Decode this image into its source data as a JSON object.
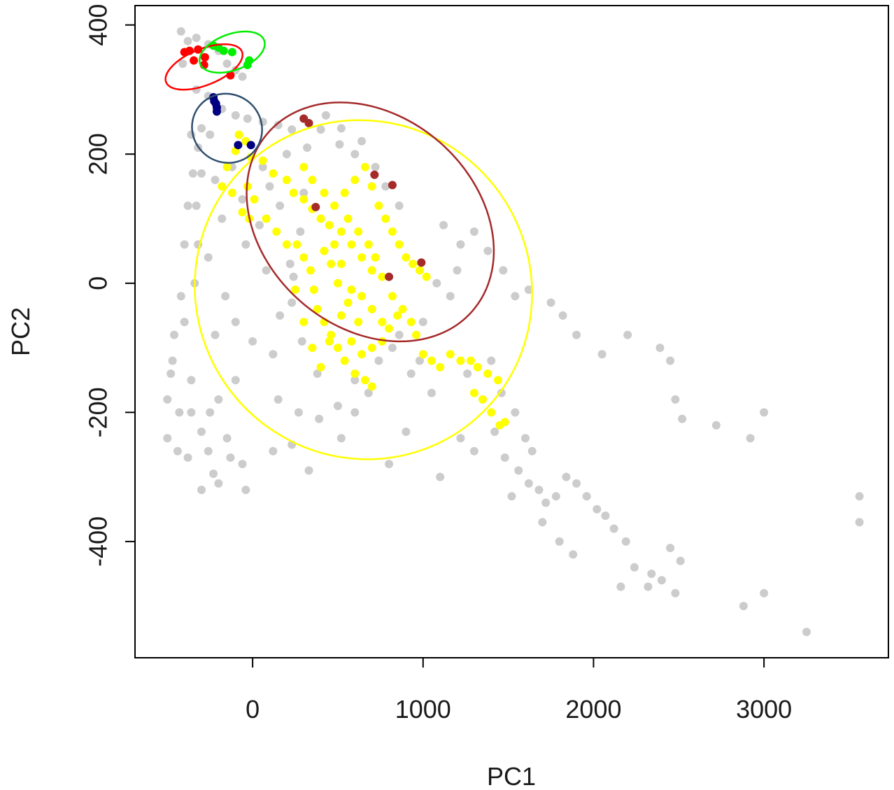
{
  "chart_data": {
    "type": "scatter",
    "title": "",
    "xlabel": "PC1",
    "ylabel": "PC2",
    "xlim": [
      -690,
      3730
    ],
    "ylim": [
      -580,
      430
    ],
    "x_ticks": [
      0,
      1000,
      2000,
      3000
    ],
    "y_ticks": [
      -400,
      -200,
      0,
      200,
      400
    ],
    "x_tick_labels": [
      "0",
      "1000",
      "2000",
      "3000"
    ],
    "y_tick_labels": [
      "-400",
      "-200",
      "0",
      "200",
      "400"
    ],
    "grid": false,
    "legend": "none",
    "colors": {
      "background_points": "#cccccc",
      "yellow": "#ffff00",
      "brown": "#a52a2a",
      "red": "#ff0000",
      "green": "#00ee00",
      "navy": "#000080",
      "slate": "#2f4f6f"
    },
    "background_points": [
      [
        -420,
        390
      ],
      [
        -380,
        375
      ],
      [
        -330,
        380
      ],
      [
        -260,
        370
      ],
      [
        -200,
        360
      ],
      [
        -150,
        340
      ],
      [
        -100,
        330
      ],
      [
        -60,
        320
      ],
      [
        -410,
        340
      ],
      [
        -330,
        300
      ],
      [
        -260,
        290
      ],
      [
        -180,
        270
      ],
      [
        -100,
        260
      ],
      [
        -30,
        255
      ],
      [
        60,
        250
      ],
      [
        150,
        245
      ],
      [
        230,
        238
      ],
      [
        400,
        238
      ],
      [
        510,
        215
      ],
      [
        600,
        200
      ],
      [
        -360,
        230
      ],
      [
        -320,
        210
      ],
      [
        -300,
        170
      ],
      [
        -330,
        120
      ],
      [
        -320,
        60
      ],
      [
        -340,
        0
      ],
      [
        -400,
        -60
      ],
      [
        -470,
        -120
      ],
      [
        -500,
        -180
      ],
      [
        -500,
        -240
      ],
      [
        -440,
        -260
      ],
      [
        -380,
        -270
      ],
      [
        -300,
        -230
      ],
      [
        -200,
        -180
      ],
      [
        -100,
        -150
      ],
      [
        -250,
        -200
      ],
      [
        -360,
        -150
      ],
      [
        -220,
        -80
      ],
      [
        -160,
        -20
      ],
      [
        -260,
        40
      ],
      [
        -180,
        100
      ],
      [
        -220,
        160
      ],
      [
        -120,
        180
      ],
      [
        -60,
        130
      ],
      [
        40,
        90
      ],
      [
        -40,
        60
      ],
      [
        80,
        20
      ],
      [
        -100,
        -60
      ],
      [
        0,
        -90
      ],
      [
        120,
        -110
      ],
      [
        160,
        -50
      ],
      [
        230,
        -30
      ],
      [
        220,
        30
      ],
      [
        280,
        80
      ],
      [
        300,
        140
      ],
      [
        100,
        150
      ],
      [
        200,
        200
      ],
      [
        320,
        210
      ],
      [
        -300,
        -320
      ],
      [
        -200,
        -310
      ],
      [
        -130,
        -270
      ],
      [
        -60,
        -280
      ],
      [
        -40,
        -320
      ],
      [
        150,
        -180
      ],
      [
        270,
        -200
      ],
      [
        390,
        -210
      ],
      [
        500,
        -190
      ],
      [
        600,
        -200
      ],
      [
        520,
        -240
      ],
      [
        740,
        -120
      ],
      [
        860,
        -80
      ],
      [
        930,
        -140
      ],
      [
        1000,
        -60
      ],
      [
        1080,
        0
      ],
      [
        1120,
        90
      ],
      [
        1220,
        60
      ],
      [
        1300,
        80
      ],
      [
        1380,
        50
      ],
      [
        1470,
        20
      ],
      [
        1540,
        -20
      ],
      [
        1620,
        -10
      ],
      [
        1750,
        -30
      ],
      [
        1820,
        -50
      ],
      [
        1900,
        -80
      ],
      [
        1350,
        -180
      ],
      [
        1420,
        -230
      ],
      [
        1480,
        -270
      ],
      [
        1560,
        -290
      ],
      [
        1620,
        -310
      ],
      [
        1680,
        -320
      ],
      [
        1720,
        -340
      ],
      [
        1780,
        -330
      ],
      [
        1840,
        -300
      ],
      [
        1900,
        -310
      ],
      [
        1960,
        -330
      ],
      [
        2020,
        -350
      ],
      [
        2070,
        -360
      ],
      [
        1700,
        -370
      ],
      [
        1800,
        -400
      ],
      [
        1880,
        -420
      ],
      [
        2120,
        -380
      ],
      [
        2190,
        -400
      ],
      [
        2240,
        -440
      ],
      [
        2320,
        -470
      ],
      [
        2400,
        -460
      ],
      [
        2480,
        -480
      ],
      [
        1520,
        -330
      ],
      [
        1640,
        -260
      ],
      [
        1300,
        -260
      ],
      [
        1220,
        -240
      ],
      [
        1050,
        -170
      ],
      [
        900,
        -230
      ],
      [
        800,
        -280
      ],
      [
        1100,
        -300
      ],
      [
        2200,
        -80
      ],
      [
        2050,
        -110
      ],
      [
        2390,
        -100
      ],
      [
        2450,
        -120
      ],
      [
        2480,
        -180
      ],
      [
        2520,
        -210
      ],
      [
        2720,
        -220
      ],
      [
        2920,
        -240
      ],
      [
        3000,
        -200
      ],
      [
        2160,
        -470
      ],
      [
        2880,
        -500
      ],
      [
        3000,
        -480
      ],
      [
        3250,
        -540
      ],
      [
        3560,
        -330
      ],
      [
        3560,
        -370
      ],
      [
        2450,
        -410
      ],
      [
        2510,
        -430
      ],
      [
        2340,
        -450
      ],
      [
        120,
        -260
      ],
      [
        230,
        -250
      ],
      [
        330,
        -290
      ],
      [
        -260,
        -260
      ],
      [
        -230,
        -295
      ],
      [
        -150,
        -240
      ],
      [
        -360,
        -200
      ],
      [
        -430,
        -200
      ],
      [
        -480,
        -140
      ],
      [
        -460,
        -80
      ],
      [
        -420,
        -20
      ],
      [
        -400,
        60
      ],
      [
        -380,
        120
      ],
      [
        -350,
        170
      ],
      [
        -300,
        240
      ],
      [
        -250,
        230
      ],
      [
        60,
        180
      ],
      [
        160,
        120
      ],
      [
        240,
        10
      ],
      [
        290,
        -90
      ],
      [
        380,
        -140
      ],
      [
        600,
        -150
      ],
      [
        680,
        -170
      ],
      [
        820,
        -100
      ],
      [
        980,
        -120
      ],
      [
        1160,
        -20
      ],
      [
        1200,
        20
      ],
      [
        1260,
        -140
      ],
      [
        1400,
        -120
      ],
      [
        1460,
        -170
      ],
      [
        1540,
        -200
      ],
      [
        1600,
        -240
      ],
      [
        430,
        260
      ],
      [
        520,
        240
      ],
      [
        640,
        220
      ],
      [
        720,
        180
      ],
      [
        780,
        150
      ],
      [
        860,
        120
      ]
    ],
    "series": [
      {
        "color": "#ffff00",
        "points": [
          [
            -80,
            230
          ],
          [
            -40,
            220
          ],
          [
            -100,
            205
          ],
          [
            -10,
            195
          ],
          [
            -150,
            180
          ],
          [
            -180,
            150
          ],
          [
            -120,
            140
          ],
          [
            -60,
            110
          ],
          [
            -20,
            100
          ],
          [
            60,
            190
          ],
          [
            120,
            170
          ],
          [
            200,
            160
          ],
          [
            240,
            140
          ],
          [
            300,
            130
          ],
          [
            350,
            115
          ],
          [
            400,
            100
          ],
          [
            450,
            90
          ],
          [
            520,
            80
          ],
          [
            580,
            60
          ],
          [
            640,
            40
          ],
          [
            700,
            20
          ],
          [
            760,
            10
          ],
          [
            820,
            -20
          ],
          [
            880,
            -40
          ],
          [
            930,
            -60
          ],
          [
            960,
            -80
          ],
          [
            1000,
            -110
          ],
          [
            1050,
            -120
          ],
          [
            1100,
            -130
          ],
          [
            1160,
            -110
          ],
          [
            1220,
            -120
          ],
          [
            1280,
            -120
          ],
          [
            1320,
            -130
          ],
          [
            1380,
            -140
          ],
          [
            1440,
            -150
          ],
          [
            1300,
            -170
          ],
          [
            1350,
            -180
          ],
          [
            1400,
            -200
          ],
          [
            1450,
            -220
          ],
          [
            1480,
            -215
          ],
          [
            260,
            60
          ],
          [
            300,
            40
          ],
          [
            340,
            20
          ],
          [
            360,
            -10
          ],
          [
            380,
            -40
          ],
          [
            420,
            -60
          ],
          [
            460,
            -80
          ],
          [
            500,
            -100
          ],
          [
            540,
            -120
          ],
          [
            600,
            -140
          ],
          [
            660,
            -150
          ],
          [
            700,
            -160
          ],
          [
            620,
            -60
          ],
          [
            560,
            -30
          ],
          [
            500,
            0
          ],
          [
            460,
            30
          ],
          [
            420,
            50
          ],
          [
            480,
            120
          ],
          [
            540,
            140
          ],
          [
            600,
            160
          ],
          [
            660,
            180
          ],
          [
            700,
            150
          ],
          [
            740,
            120
          ],
          [
            780,
            100
          ],
          [
            820,
            80
          ],
          [
            860,
            60
          ],
          [
            900,
            40
          ],
          [
            940,
            30
          ],
          [
            980,
            20
          ],
          [
            1020,
            10
          ],
          [
            560,
            100
          ],
          [
            620,
            80
          ],
          [
            680,
            60
          ],
          [
            720,
            40
          ],
          [
            480,
            60
          ],
          [
            520,
            30
          ],
          [
            580,
            -10
          ],
          [
            640,
            -20
          ],
          [
            700,
            -40
          ],
          [
            760,
            -60
          ],
          [
            -30,
            150
          ],
          [
            10,
            130
          ],
          [
            80,
            100
          ],
          [
            140,
            80
          ],
          [
            200,
            60
          ],
          [
            250,
            -10
          ],
          [
            300,
            -60
          ],
          [
            350,
            -100
          ],
          [
            400,
            -130
          ],
          [
            450,
            -90
          ],
          [
            520,
            -50
          ],
          [
            580,
            -90
          ],
          [
            640,
            -110
          ],
          [
            700,
            -100
          ],
          [
            760,
            -90
          ],
          [
            800,
            -70
          ],
          [
            850,
            -50
          ],
          [
            300,
            180
          ],
          [
            350,
            160
          ],
          [
            420,
            140
          ]
        ]
      },
      {
        "color": "#a52a2a",
        "points": [
          [
            300,
            255
          ],
          [
            330,
            248
          ],
          [
            715,
            168
          ],
          [
            820,
            152
          ],
          [
            370,
            118
          ],
          [
            990,
            32
          ],
          [
            800,
            10
          ]
        ]
      },
      {
        "color": "#ff0000",
        "points": [
          [
            -400,
            358
          ],
          [
            -370,
            360
          ],
          [
            -320,
            362
          ],
          [
            -280,
            350
          ],
          [
            -345,
            345
          ],
          [
            -285,
            338
          ],
          [
            -130,
            322
          ]
        ]
      },
      {
        "color": "#00ee00",
        "points": [
          [
            -230,
            368
          ],
          [
            -200,
            365
          ],
          [
            -170,
            360
          ],
          [
            -120,
            358
          ],
          [
            -30,
            338
          ],
          [
            -20,
            345
          ]
        ]
      },
      {
        "color": "#000080",
        "points": [
          [
            -230,
            288
          ],
          [
            -225,
            282
          ],
          [
            -215,
            278
          ],
          [
            -210,
            272
          ],
          [
            -210,
            266
          ],
          [
            -85,
            214
          ],
          [
            -10,
            214
          ]
        ]
      }
    ],
    "ellipses": [
      {
        "color": "#ffff00",
        "cx": 650,
        "cy": -10,
        "rx": 980,
        "ry": 265,
        "angle_deg": -39
      },
      {
        "color": "#a52a2a",
        "cx": 690,
        "cy": 95,
        "rx": 620,
        "ry": 210,
        "angle_deg": -49
      },
      {
        "color": "#2f4f6f",
        "cx": -150,
        "cy": 240,
        "rx": 200,
        "ry": 55,
        "angle_deg": -55
      },
      {
        "color": "#ff0000",
        "cx": -285,
        "cy": 335,
        "rx": 240,
        "ry": 28,
        "angle_deg": -22
      },
      {
        "color": "#00ee00",
        "cx": -120,
        "cy": 358,
        "rx": 200,
        "ry": 28,
        "angle_deg": -20
      }
    ]
  }
}
